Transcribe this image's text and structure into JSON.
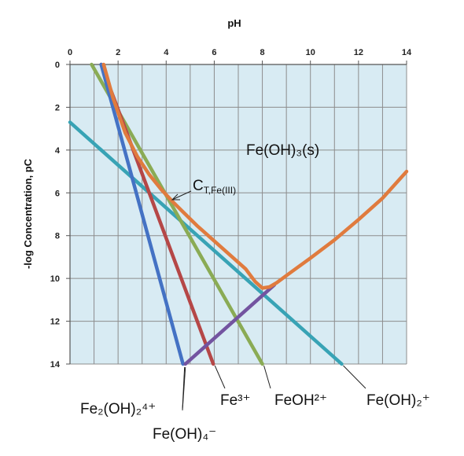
{
  "chart_data": {
    "type": "line",
    "xlabel": "pH",
    "ylabel": "-log Concentration, pC",
    "xlim": [
      0,
      14
    ],
    "ylim": [
      14,
      0
    ],
    "x_ticks": [
      "0",
      "2",
      "4",
      "6",
      "8",
      "10",
      "12",
      "14"
    ],
    "y_ticks": [
      "0",
      "2",
      "4",
      "6",
      "8",
      "10",
      "12",
      "14"
    ],
    "grid": true,
    "series": [
      {
        "name": "Fe2(OH)2 4+",
        "color": "#4472c4",
        "x": [
          1.3,
          4.7
        ],
        "y": [
          0,
          14
        ]
      },
      {
        "name": "Fe3+",
        "color": "#b54747",
        "x": [
          1.3,
          5.96
        ],
        "y": [
          0,
          14
        ]
      },
      {
        "name": "FeOH2+",
        "color": "#8aab55",
        "x": [
          0.9,
          8.0
        ],
        "y": [
          0,
          14
        ]
      },
      {
        "name": "Fe(OH)2+",
        "color": "#38a3b5",
        "x": [
          0,
          11.3
        ],
        "y": [
          2.7,
          14
        ]
      },
      {
        "name": "Fe(OH)4-",
        "color": "#7354a0",
        "x": [
          4.8,
          8.5
        ],
        "y": [
          14,
          10.3
        ]
      },
      {
        "name": "CT,Fe(III)",
        "color": "#e07b3e",
        "x": [
          1.4,
          1.8,
          2.3,
          2.8,
          3.3,
          3.8,
          4.3,
          4.8,
          5.3,
          5.8,
          6.3,
          6.8,
          7.3,
          7.7,
          8.0,
          8.3,
          8.6,
          9.2,
          10,
          11,
          12,
          13,
          14
        ],
        "y": [
          0,
          1.6,
          3.2,
          4.3,
          5.15,
          5.85,
          6.45,
          7.0,
          7.55,
          8.05,
          8.55,
          9.05,
          9.55,
          10.15,
          10.45,
          10.4,
          10.2,
          9.7,
          9.05,
          8.2,
          7.25,
          6.25,
          5.0
        ]
      }
    ],
    "labels": {
      "fe2oh2": "Fe₂(OH)₂⁴⁺",
      "fe3": "Fe³⁺",
      "feoh2": "FeOH²⁺",
      "feoh2plus": "Fe(OH)₂⁺",
      "feoh4": "Fe(OH)₄⁻",
      "ct_main": "C",
      "ct_sub": "T,Fe(III)",
      "solid": "Fe(OH)₃(s)"
    }
  }
}
